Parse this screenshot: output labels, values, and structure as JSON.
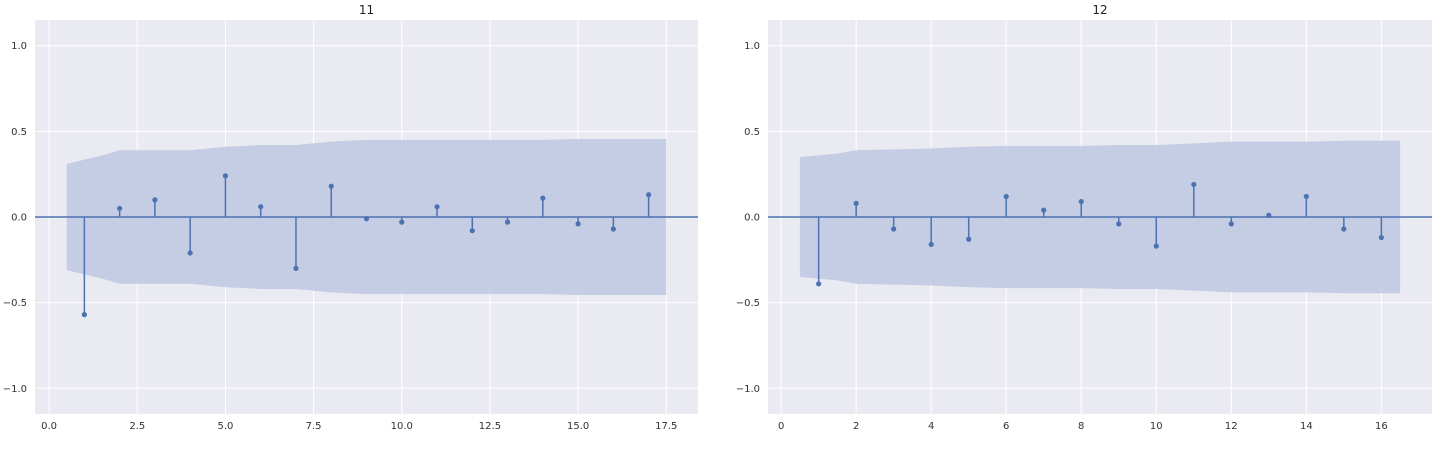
{
  "chart_data": [
    {
      "type": "stem",
      "title": "11",
      "xlim": [
        -0.4,
        18.4
      ],
      "ylim": [
        -1.15,
        1.15
      ],
      "xticks": [
        0,
        2.5,
        5,
        7.5,
        10,
        12.5,
        15,
        17.5
      ],
      "xtick_labels": [
        "0.0",
        "2.5",
        "5.0",
        "7.5",
        "10.0",
        "12.5",
        "15.0",
        "17.5"
      ],
      "yticks": [
        -1,
        -0.5,
        0,
        0.5,
        1
      ],
      "ytick_labels": [
        "−1.0",
        "−0.5",
        "0.0",
        "0.5",
        "1.0"
      ],
      "grid": true,
      "x": [
        1,
        2,
        3,
        4,
        5,
        6,
        7,
        8,
        9,
        10,
        11,
        12,
        13,
        14,
        15,
        16,
        17
      ],
      "y": [
        -0.57,
        0.05,
        0.1,
        -0.21,
        0.24,
        0.06,
        -0.3,
        0.18,
        -0.01,
        -0.03,
        0.06,
        -0.08,
        -0.03,
        0.11,
        -0.04,
        -0.07,
        0.13
      ],
      "confidence_band": {
        "x": [
          0.5,
          1.5,
          2,
          3,
          4,
          5,
          6,
          7,
          8,
          9,
          10,
          11,
          12,
          13,
          14,
          15,
          16,
          17,
          17.5
        ],
        "upper": [
          0.31,
          0.36,
          0.39,
          0.39,
          0.39,
          0.41,
          0.42,
          0.42,
          0.44,
          0.45,
          0.45,
          0.45,
          0.45,
          0.45,
          0.45,
          0.455,
          0.455,
          0.455,
          0.455
        ]
      }
    },
    {
      "type": "stem",
      "title": "12",
      "xlim": [
        -0.35,
        17.35
      ],
      "ylim": [
        -1.15,
        1.15
      ],
      "xticks": [
        0,
        2,
        4,
        6,
        8,
        10,
        12,
        14,
        16
      ],
      "xtick_labels": [
        "0",
        "2",
        "4",
        "6",
        "8",
        "10",
        "12",
        "14",
        "16"
      ],
      "yticks": [
        -1,
        -0.5,
        0,
        0.5,
        1
      ],
      "ytick_labels": [
        "−1.0",
        "−0.5",
        "0.0",
        "0.5",
        "1.0"
      ],
      "grid": true,
      "x": [
        1,
        2,
        3,
        4,
        5,
        6,
        7,
        8,
        9,
        10,
        11,
        12,
        13,
        14,
        15,
        16
      ],
      "y": [
        -0.39,
        0.08,
        -0.07,
        -0.16,
        -0.13,
        0.12,
        0.04,
        0.09,
        -0.04,
        -0.17,
        0.19,
        -0.04,
        0.01,
        0.12,
        -0.07,
        -0.12
      ],
      "confidence_band": {
        "x": [
          0.5,
          1.5,
          2,
          3,
          4,
          5,
          6,
          7,
          8,
          9,
          10,
          11,
          12,
          13,
          14,
          15,
          16,
          16.5
        ],
        "upper": [
          0.35,
          0.37,
          0.39,
          0.395,
          0.4,
          0.41,
          0.415,
          0.415,
          0.415,
          0.42,
          0.42,
          0.43,
          0.44,
          0.44,
          0.44,
          0.445,
          0.445,
          0.445
        ]
      }
    }
  ],
  "colors": {
    "plot_background": "#EAEAF2",
    "grid": "#FFFFFF",
    "stem": "#4C72B0",
    "band": "#C3CBE3",
    "axis_text": "#333333"
  }
}
